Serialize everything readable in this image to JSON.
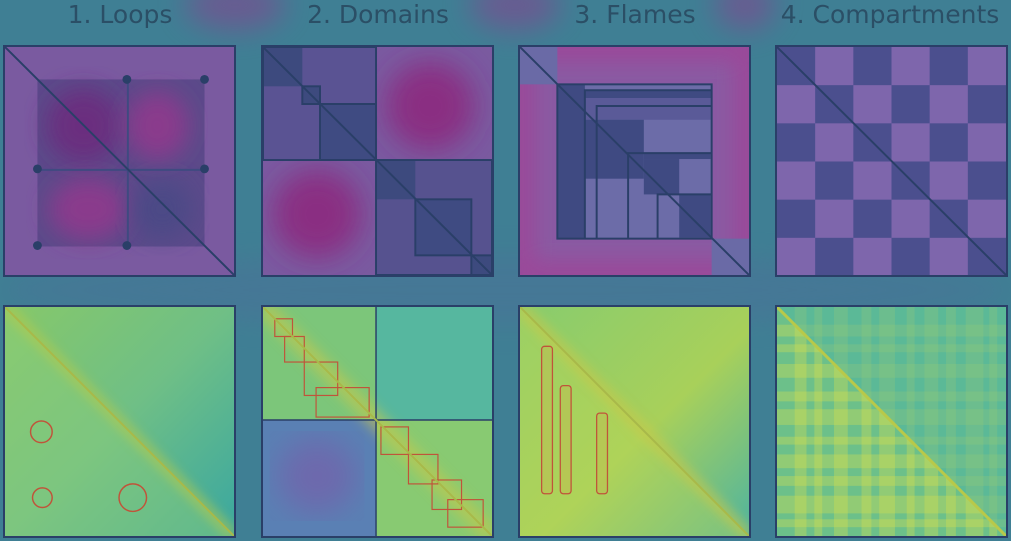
{
  "title": "",
  "panels": [
    {
      "number": "1.",
      "label": "Loops"
    },
    {
      "number": "2.",
      "label": "Domains"
    },
    {
      "number": "3.",
      "label": "Flames"
    },
    {
      "number": "4.",
      "label": "Compartments"
    }
  ],
  "colors": {
    "background": "#3f7f94",
    "heading_text": "#2b4f66",
    "purple_strong": "#6a2f7f",
    "purple_soft": "#8b5ca0",
    "navy": "#2a3f68",
    "slate": "#4b5d8c",
    "heat_low": "#3aa7a0",
    "heat_mid": "#7cc77c",
    "heat_high": "#c9d64a",
    "feature_outline": "#c0543a"
  },
  "icons": [
    "loop-point-dot",
    "loop-circle-marker",
    "domain-square-outline",
    "flame-stripe-outline"
  ]
}
